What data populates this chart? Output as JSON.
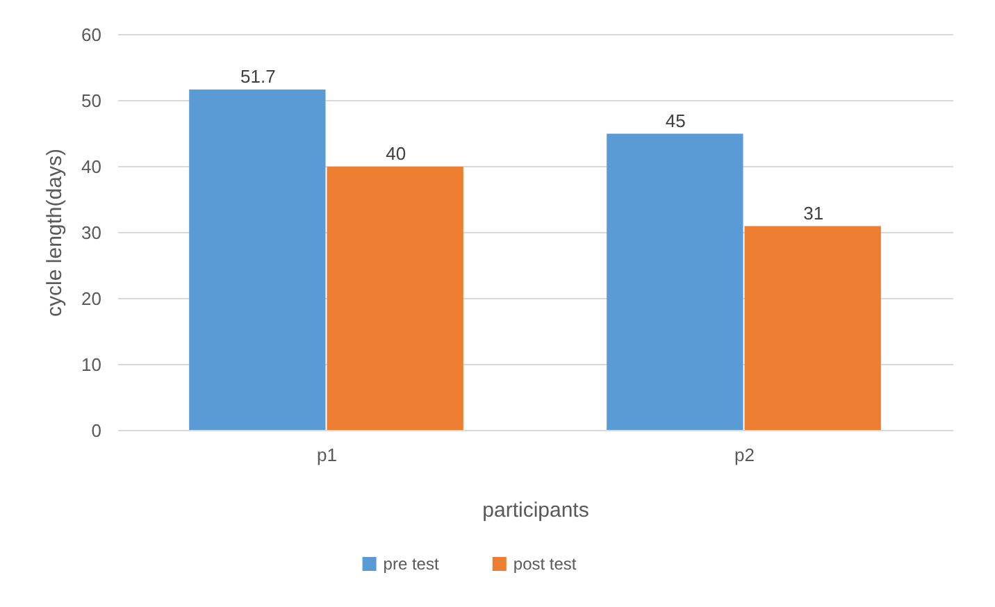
{
  "chart_data": {
    "type": "bar",
    "xlabel": "participants",
    "ylabel": "cycle length(days)",
    "categories": [
      "p1",
      "p2"
    ],
    "series": [
      {
        "name": "pre test",
        "color": "#5b9bd5",
        "values": [
          51.7,
          45
        ]
      },
      {
        "name": "post test",
        "color": "#ed7d31",
        "values": [
          40,
          31
        ]
      }
    ],
    "ylim": [
      0,
      60
    ],
    "yticks": [
      0,
      10,
      20,
      30,
      40,
      50,
      60
    ],
    "grid": "y",
    "legend": "bottom",
    "data_labels": true
  }
}
